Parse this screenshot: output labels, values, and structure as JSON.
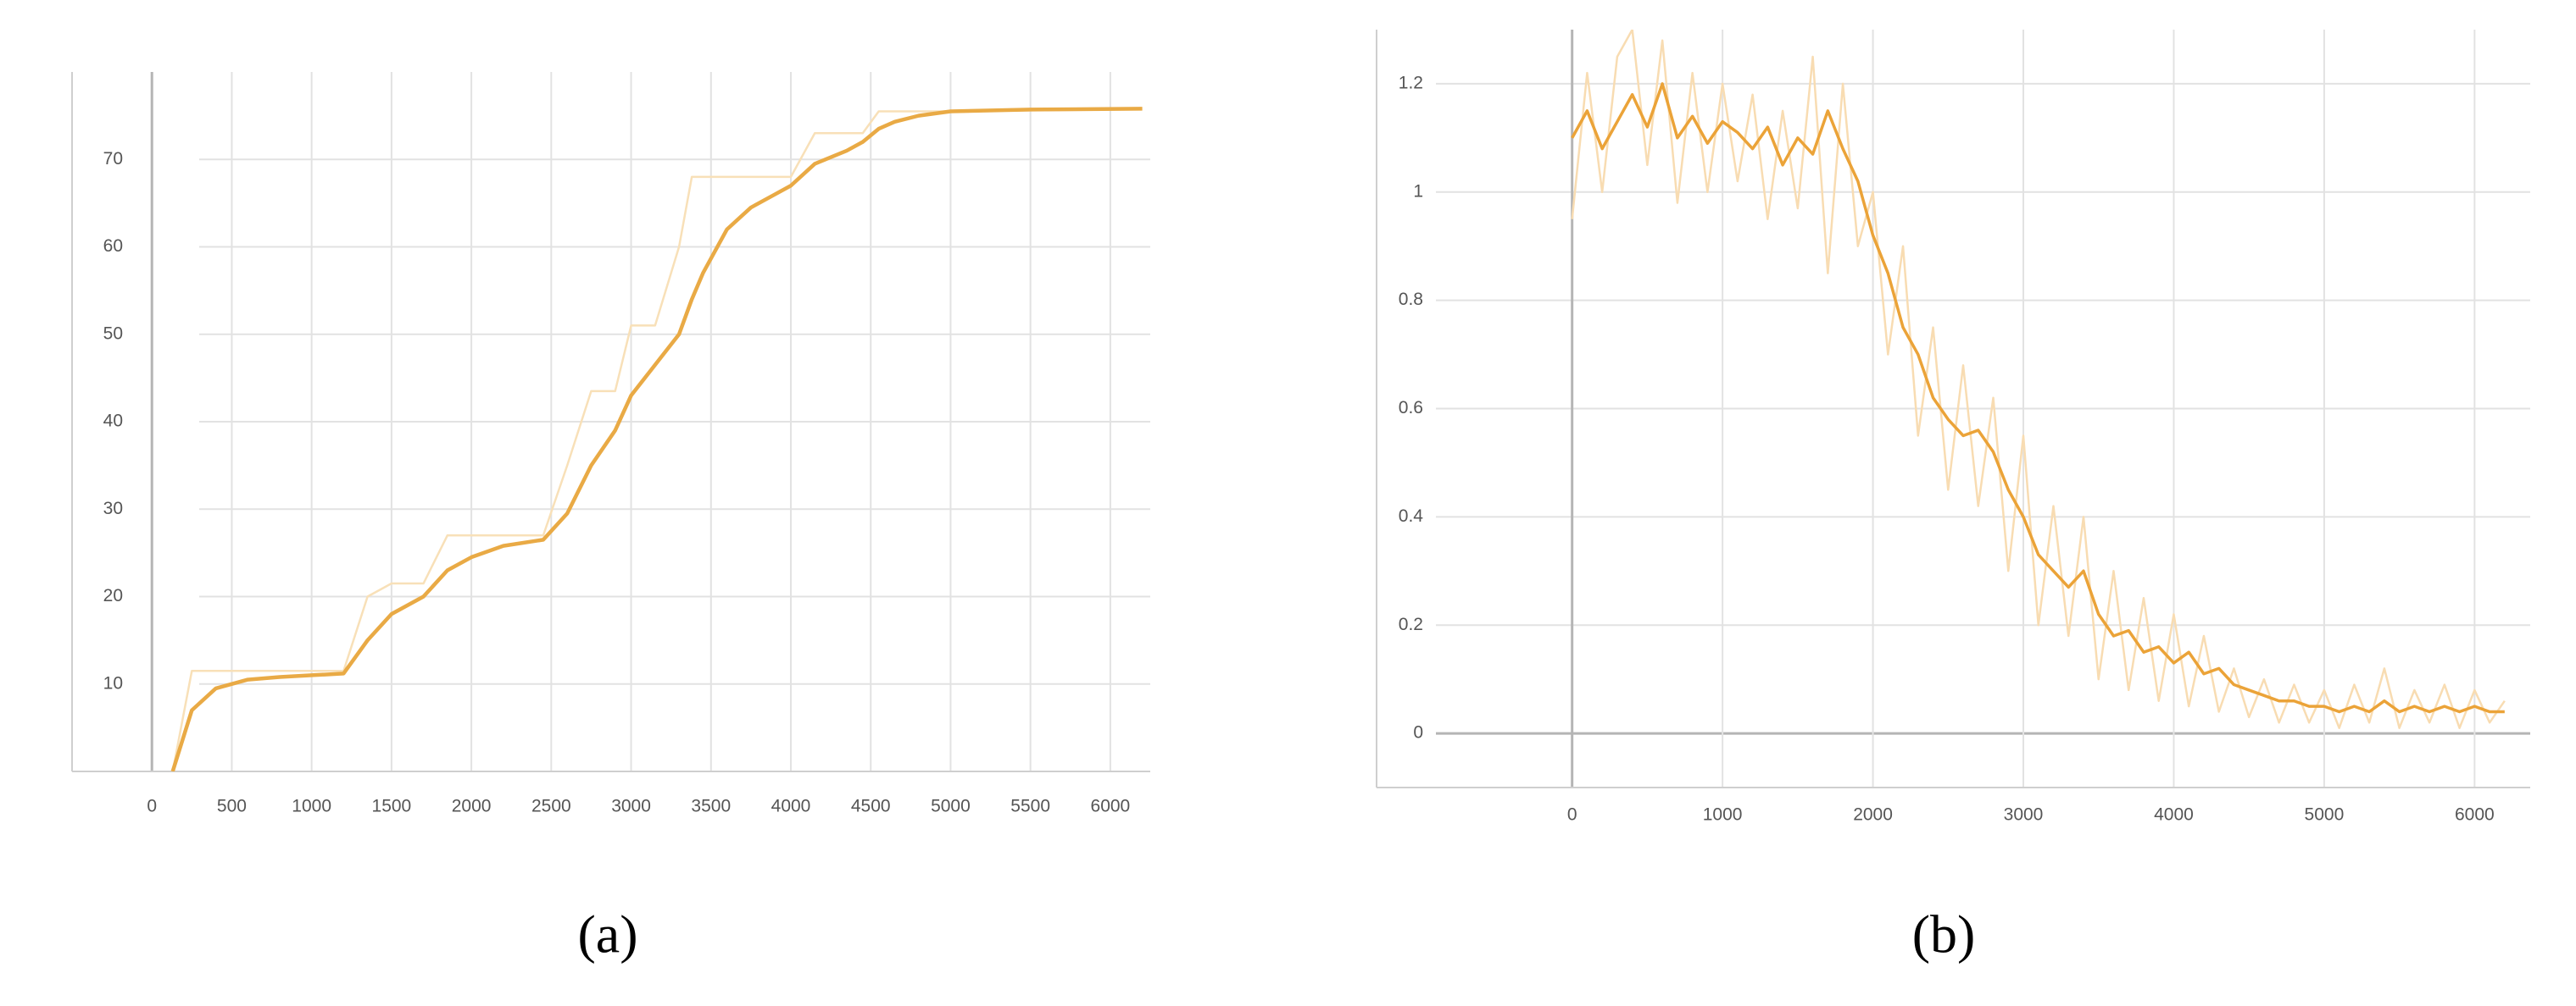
{
  "chart_data": [
    {
      "type": "line",
      "caption": "(a)",
      "x": [
        130,
        250,
        400,
        600,
        800,
        1000,
        1200,
        1350,
        1500,
        1700,
        1850,
        2000,
        2200,
        2450,
        2600,
        2750,
        2900,
        3000,
        3150,
        3300,
        3380,
        3450,
        3600,
        3750,
        3900,
        4000,
        4150,
        4350,
        4450,
        4550,
        4650,
        4800,
        5000,
        5500,
        6200
      ],
      "series": [
        {
          "color": "#f8e0b8",
          "width": 2.5,
          "values": [
            0,
            11.5,
            11.5,
            11.5,
            11.5,
            11.5,
            11.5,
            20,
            21.5,
            21.5,
            27,
            27,
            27,
            27,
            35,
            43.5,
            43.5,
            51,
            51,
            60,
            68,
            68,
            68,
            68,
            68,
            68,
            73,
            73,
            73,
            75.5,
            75.5,
            75.5,
            75.5,
            75.6,
            75.8
          ]
        },
        {
          "color": "#e9aa45",
          "width": 4.5,
          "values": [
            0,
            7,
            9.5,
            10.5,
            10.8,
            11,
            11.2,
            15,
            18,
            20,
            23,
            24.5,
            25.8,
            26.5,
            29.5,
            35,
            39,
            43,
            46.5,
            50,
            54,
            57,
            62,
            64.5,
            66,
            67,
            69.5,
            71,
            72,
            73.5,
            74.3,
            75,
            75.5,
            75.7,
            75.8
          ]
        }
      ],
      "xlim": [
        -500,
        6250
      ],
      "ylim": [
        0,
        80
      ],
      "xticks": [
        0,
        500,
        1000,
        1500,
        2000,
        2500,
        3000,
        3500,
        4000,
        4500,
        5000,
        5500,
        6000
      ],
      "yticks": [
        10,
        20,
        30,
        40,
        50,
        60,
        70
      ],
      "grid": true
    },
    {
      "type": "line",
      "caption": "(b)",
      "x": [
        0,
        100,
        200,
        300,
        400,
        500,
        600,
        700,
        800,
        900,
        1000,
        1100,
        1200,
        1300,
        1400,
        1500,
        1600,
        1700,
        1800,
        1900,
        2000,
        2100,
        2200,
        2300,
        2400,
        2500,
        2600,
        2700,
        2800,
        2900,
        3000,
        3100,
        3200,
        3300,
        3400,
        3500,
        3600,
        3700,
        3800,
        3900,
        4000,
        4100,
        4200,
        4300,
        4400,
        4500,
        4600,
        4700,
        4800,
        4900,
        5000,
        5100,
        5200,
        5300,
        5400,
        5500,
        5600,
        5700,
        5800,
        5900,
        6000,
        6100,
        6200
      ],
      "series": [
        {
          "color": "#f8dcb2",
          "width": 2.5,
          "values": [
            0.95,
            1.22,
            1.0,
            1.25,
            1.3,
            1.05,
            1.28,
            0.98,
            1.22,
            1.0,
            1.2,
            1.02,
            1.18,
            0.95,
            1.15,
            0.97,
            1.25,
            0.85,
            1.2,
            0.9,
            1.0,
            0.7,
            0.9,
            0.55,
            0.75,
            0.45,
            0.68,
            0.42,
            0.62,
            0.3,
            0.55,
            0.2,
            0.42,
            0.18,
            0.4,
            0.1,
            0.3,
            0.08,
            0.25,
            0.06,
            0.22,
            0.05,
            0.18,
            0.04,
            0.12,
            0.03,
            0.1,
            0.02,
            0.09,
            0.02,
            0.08,
            0.01,
            0.09,
            0.02,
            0.12,
            0.01,
            0.08,
            0.02,
            0.09,
            0.01,
            0.08,
            0.02,
            0.06
          ]
        },
        {
          "color": "#eba338",
          "width": 3.5,
          "values": [
            1.1,
            1.15,
            1.08,
            1.13,
            1.18,
            1.12,
            1.2,
            1.1,
            1.14,
            1.09,
            1.13,
            1.11,
            1.08,
            1.12,
            1.05,
            1.1,
            1.07,
            1.15,
            1.08,
            1.02,
            0.92,
            0.85,
            0.75,
            0.7,
            0.62,
            0.58,
            0.55,
            0.56,
            0.52,
            0.45,
            0.4,
            0.33,
            0.3,
            0.27,
            0.3,
            0.22,
            0.18,
            0.19,
            0.15,
            0.16,
            0.13,
            0.15,
            0.11,
            0.12,
            0.09,
            0.08,
            0.07,
            0.06,
            0.06,
            0.05,
            0.05,
            0.04,
            0.05,
            0.04,
            0.06,
            0.04,
            0.05,
            0.04,
            0.05,
            0.04,
            0.05,
            0.04,
            0.04
          ]
        }
      ],
      "xlim": [
        -1300,
        6370
      ],
      "ylim": [
        -0.1,
        1.3
      ],
      "xticks": [
        0,
        1000,
        2000,
        3000,
        4000,
        5000,
        6000
      ],
      "yticks": [
        0,
        0.2,
        0.4,
        0.6,
        0.8,
        1,
        1.2
      ],
      "grid": true
    }
  ]
}
